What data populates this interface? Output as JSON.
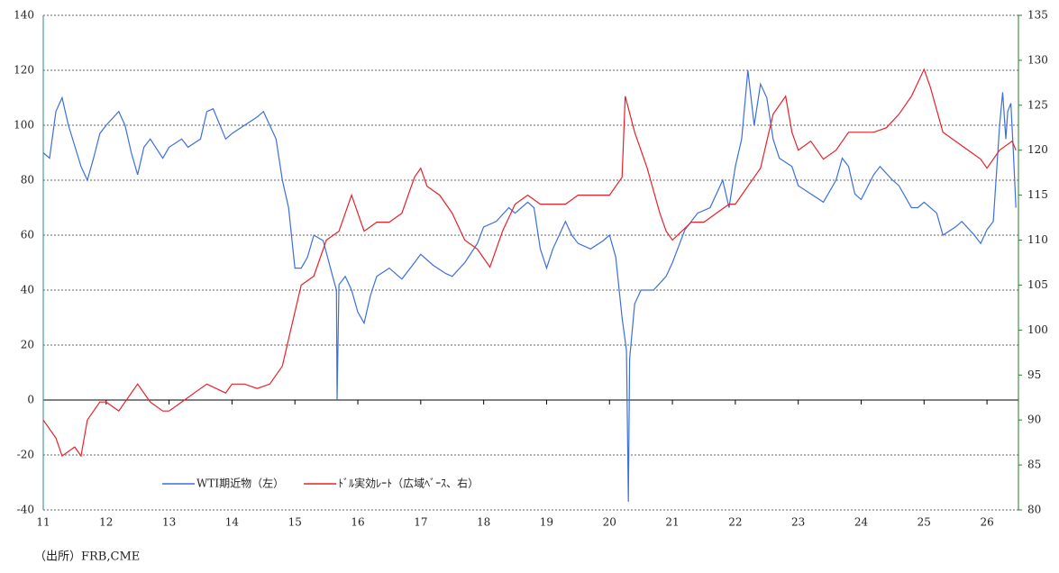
{
  "chart_data": {
    "type": "line",
    "source": "（出所）FRB,CME",
    "xlim": [
      11,
      26.5
    ],
    "xticks": [
      11,
      12,
      13,
      14,
      15,
      16,
      17,
      18,
      19,
      20,
      21,
      22,
      23,
      24,
      25,
      26
    ],
    "ylim": [
      -40,
      140
    ],
    "yticks": [
      -40,
      -20,
      0,
      20,
      40,
      60,
      80,
      100,
      120,
      140
    ],
    "y2lim": [
      80,
      135
    ],
    "y2ticks": [
      80,
      85,
      90,
      95,
      100,
      105,
      110,
      115,
      120,
      125,
      130,
      135
    ],
    "grid": true,
    "legend": "lower-center",
    "series": [
      {
        "name": "WTI期近物（左）",
        "color": "#3b6fe0",
        "axis": "y",
        "x": [
          11.0,
          11.1,
          11.2,
          11.3,
          11.4,
          11.6,
          11.7,
          11.8,
          11.9,
          12.0,
          12.2,
          12.3,
          12.4,
          12.5,
          12.6,
          12.7,
          12.9,
          13.0,
          13.2,
          13.3,
          13.5,
          13.6,
          13.7,
          13.9,
          14.0,
          14.2,
          14.4,
          14.5,
          14.6,
          14.7,
          14.8,
          14.9,
          15.0,
          15.1,
          15.2,
          15.3,
          15.45,
          15.6,
          15.66,
          15.67,
          15.7,
          15.8,
          15.9,
          16.0,
          16.1,
          16.2,
          16.3,
          16.5,
          16.7,
          16.9,
          17.0,
          17.2,
          17.4,
          17.5,
          17.7,
          17.9,
          18.0,
          18.2,
          18.4,
          18.5,
          18.7,
          18.8,
          18.9,
          19.0,
          19.1,
          19.3,
          19.4,
          19.5,
          19.7,
          19.9,
          20.0,
          20.1,
          20.2,
          20.27,
          20.3,
          20.32,
          20.4,
          20.5,
          20.7,
          20.9,
          21.0,
          21.2,
          21.4,
          21.6,
          21.8,
          21.9,
          22.0,
          22.1,
          22.2,
          22.3,
          22.4,
          22.5,
          22.6,
          22.7,
          22.9,
          23.0,
          23.2,
          23.4,
          23.6,
          23.7,
          23.8,
          23.9,
          24.0,
          24.2,
          24.3,
          24.5,
          24.6,
          24.8,
          24.9,
          25.0,
          25.2,
          25.3,
          25.5,
          25.6,
          25.8,
          25.9,
          26.0,
          26.1,
          26.2,
          26.25,
          26.3,
          26.33,
          26.38,
          26.42,
          26.46
        ],
        "values": [
          90,
          88,
          105,
          110,
          100,
          85,
          80,
          88,
          97,
          100,
          105,
          100,
          90,
          82,
          92,
          95,
          88,
          92,
          95,
          92,
          95,
          105,
          106,
          95,
          97,
          100,
          103,
          105,
          100,
          95,
          80,
          70,
          48,
          48,
          52,
          60,
          58,
          45,
          40,
          0,
          42,
          45,
          40,
          32,
          28,
          38,
          45,
          48,
          44,
          50,
          53,
          49,
          46,
          45,
          50,
          57,
          63,
          65,
          70,
          68,
          72,
          70,
          55,
          48,
          55,
          65,
          60,
          57,
          55,
          58,
          60,
          52,
          30,
          18,
          -37,
          15,
          35,
          40,
          40,
          45,
          50,
          62,
          68,
          70,
          80,
          70,
          85,
          95,
          120,
          100,
          115,
          110,
          95,
          88,
          85,
          78,
          75,
          72,
          80,
          88,
          85,
          75,
          73,
          82,
          85,
          80,
          78,
          70,
          70,
          72,
          68,
          60,
          63,
          65,
          60,
          57,
          62,
          65,
          100,
          112,
          95,
          105,
          108,
          90,
          70
        ]
      },
      {
        "name": "ﾄﾞﾙ実効ﾚｰﾄ（広域ﾍﾞｰｽ、右）",
        "color": "#e8202a",
        "axis": "y2",
        "x": [
          11.0,
          11.2,
          11.3,
          11.5,
          11.6,
          11.7,
          11.8,
          11.9,
          12.0,
          12.2,
          12.4,
          12.5,
          12.7,
          12.9,
          13.0,
          13.2,
          13.4,
          13.6,
          13.9,
          14.0,
          14.2,
          14.4,
          14.6,
          14.8,
          14.9,
          15.0,
          15.1,
          15.3,
          15.5,
          15.7,
          15.9,
          16.0,
          16.1,
          16.3,
          16.5,
          16.7,
          16.9,
          17.0,
          17.1,
          17.3,
          17.5,
          17.7,
          17.9,
          18.0,
          18.1,
          18.3,
          18.5,
          18.7,
          18.9,
          19.0,
          19.3,
          19.5,
          19.7,
          19.9,
          20.0,
          20.2,
          20.25,
          20.4,
          20.6,
          20.8,
          20.9,
          21.0,
          21.3,
          21.5,
          21.7,
          21.9,
          22.0,
          22.2,
          22.4,
          22.6,
          22.8,
          22.9,
          23.0,
          23.2,
          23.4,
          23.6,
          23.8,
          24.0,
          24.2,
          24.4,
          24.6,
          24.8,
          25.0,
          25.1,
          25.3,
          25.5,
          25.7,
          25.9,
          26.0,
          26.2,
          26.4,
          26.46
        ],
        "values": [
          90,
          88,
          86,
          87,
          86,
          90,
          91,
          92,
          92,
          91,
          93,
          94,
          92,
          91,
          91,
          92,
          93,
          94,
          93,
          94,
          94,
          93.5,
          94,
          96,
          99,
          102,
          105,
          106,
          110,
          111,
          115,
          113,
          111,
          112,
          112,
          113,
          117,
          118,
          116,
          115,
          113,
          110,
          109,
          108,
          107,
          111,
          114,
          115,
          114,
          114,
          114,
          115,
          115,
          115,
          115,
          117,
          126,
          122,
          118,
          113,
          111,
          110,
          112,
          112,
          113,
          114,
          114,
          116,
          118,
          124,
          126,
          122,
          120,
          121,
          119,
          120,
          122,
          122,
          122,
          122.5,
          124,
          126,
          129,
          127,
          122,
          121,
          120,
          119,
          118,
          120,
          121,
          120
        ]
      }
    ]
  }
}
